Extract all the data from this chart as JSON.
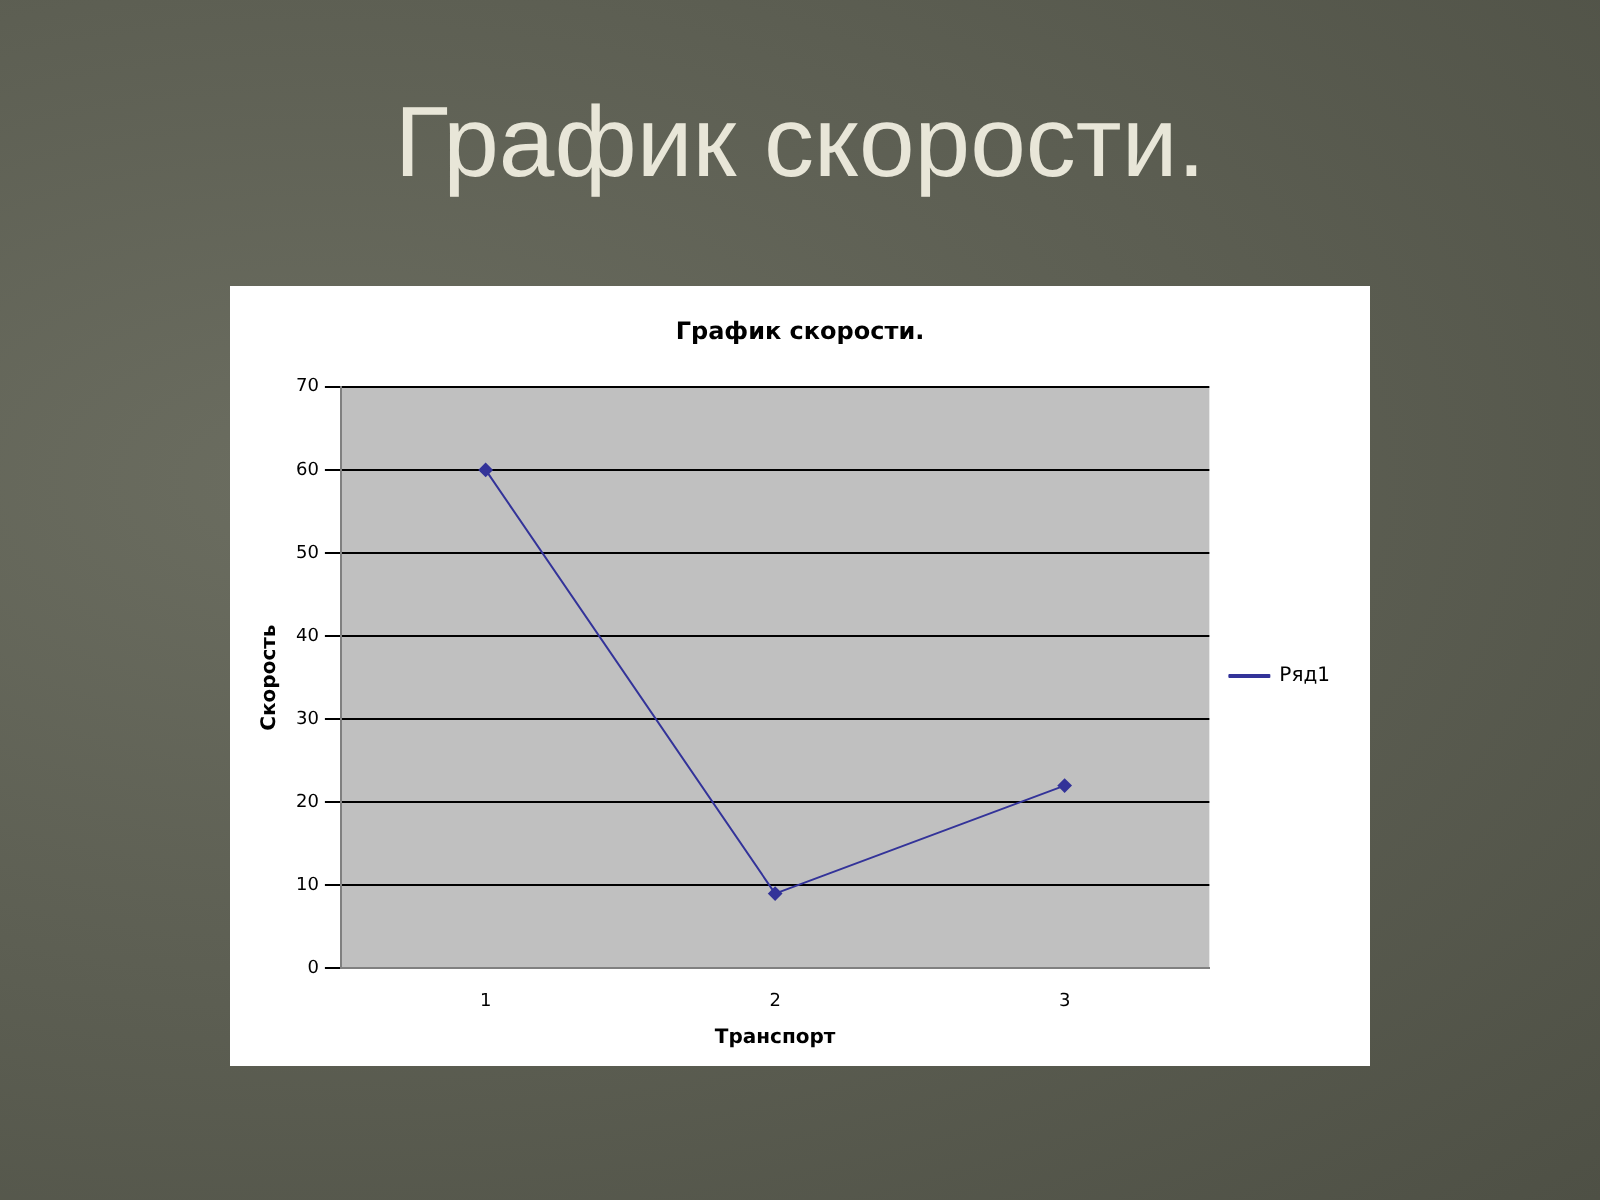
{
  "chart_data": {
    "type": "line",
    "title": "График скорости.",
    "subtitle": "График скорости.",
    "xlabel": "Транспорт",
    "ylabel": "Скорость",
    "categories": [
      "1",
      "2",
      "3"
    ],
    "series": [
      {
        "name": "Ряд1",
        "color": "#333399",
        "values": [
          60,
          9,
          22
        ]
      }
    ],
    "ylim": [
      0,
      70
    ],
    "yticks": [
      0,
      10,
      20,
      30,
      40,
      50,
      60,
      70
    ],
    "grid": "y",
    "legend": "right",
    "marker": "diamond",
    "line_style": "solid"
  }
}
